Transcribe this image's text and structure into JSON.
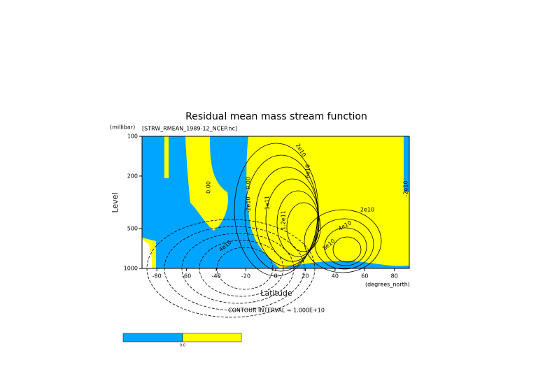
{
  "chart_data": {
    "type": "contour",
    "title": "Residual mean mass stream function",
    "subtitle": "[STRW_RMEAN_1989-12_NCEP.nc]",
    "y_unit": "(millibar)",
    "y_label": "Level",
    "x_label": "Latitude",
    "x_unit": "(degrees_north)",
    "note": "CONTOUR INTERVAL = 1.000E+10",
    "xlim": [
      -90,
      90
    ],
    "xticks": [
      -80,
      -60,
      -40,
      -20,
      0,
      20,
      40,
      60,
      80
    ],
    "ylim": [
      1000,
      100
    ],
    "yticks": [
      100,
      200,
      500,
      1000
    ],
    "y_log": true,
    "colors": [
      "#00a5ff",
      "#ffff00"
    ],
    "contour_labels": [
      "2e10",
      "4e10",
      "6e10",
      "1.2e11",
      "0.00",
      "-2e10",
      "1e11",
      "8e10",
      "0.00",
      "2e10",
      "4e10",
      "-2e10"
    ],
    "colorbar_labels": [
      "0.0"
    ]
  }
}
